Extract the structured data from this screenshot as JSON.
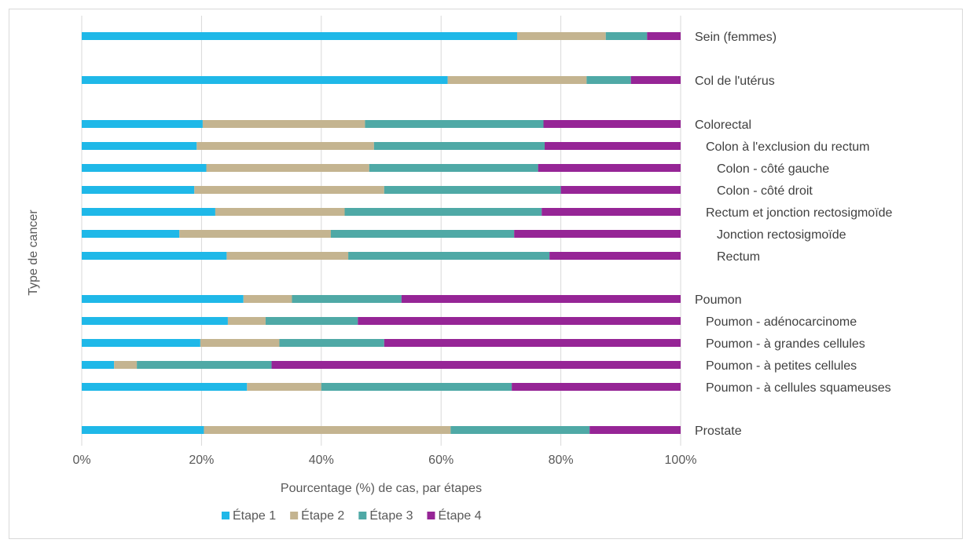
{
  "chart_data": {
    "type": "bar",
    "orientation": "horizontal",
    "stacked": true,
    "percent": true,
    "xlabel": "Pourcentage (%) de cas, par étapes",
    "ylabel": "Type de cancer",
    "xlim": [
      0,
      100
    ],
    "xticks": [
      "0%",
      "20%",
      "40%",
      "60%",
      "80%",
      "100%"
    ],
    "grid": "vertical",
    "legend_position": "bottom",
    "categories": [
      {
        "label": "Sein (femmes)",
        "indent": 0
      },
      {
        "label": "Col de l'utérus",
        "indent": 0
      },
      {
        "label": "Colorectal",
        "indent": 0
      },
      {
        "label": "Colon à l'exclusion du rectum",
        "indent": 1
      },
      {
        "label": "Colon - côté gauche",
        "indent": 2
      },
      {
        "label": "Colon - côté droit",
        "indent": 2
      },
      {
        "label": "Rectum et jonction rectosigmoïde",
        "indent": 1
      },
      {
        "label": "Jonction rectosigmoïde",
        "indent": 2
      },
      {
        "label": "Rectum",
        "indent": 2
      },
      {
        "label": "Poumon",
        "indent": 0
      },
      {
        "label": "Poumon - adénocarcinome",
        "indent": 1
      },
      {
        "label": "Poumon - à grandes cellules",
        "indent": 1
      },
      {
        "label": "Poumon - à petites cellules",
        "indent": 1
      },
      {
        "label": "Poumon - à cellules squameuses",
        "indent": 1
      },
      {
        "label": "Prostate",
        "indent": 0
      }
    ],
    "series": [
      {
        "name": "Étape 1",
        "color": "#1fb8e8",
        "values": [
          72.7,
          61.1,
          20.2,
          19.2,
          20.8,
          18.8,
          22.3,
          16.3,
          24.2,
          27.0,
          24.4,
          19.8,
          5.4,
          27.6,
          20.4
        ]
      },
      {
        "name": "Étape 2",
        "color": "#c4b490",
        "values": [
          14.8,
          23.2,
          27.1,
          29.6,
          27.2,
          31.7,
          21.6,
          25.3,
          20.3,
          8.1,
          6.3,
          13.2,
          3.8,
          12.4,
          41.2
        ]
      },
      {
        "name": "Étape 3",
        "color": "#4fa9a6",
        "values": [
          6.9,
          7.4,
          29.8,
          28.5,
          28.2,
          29.5,
          32.9,
          30.6,
          33.6,
          18.3,
          15.4,
          17.5,
          22.5,
          31.8,
          23.2
        ]
      },
      {
        "name": "Étape 4",
        "color": "#962596",
        "values": [
          5.6,
          8.3,
          22.9,
          22.7,
          23.8,
          20.0,
          23.2,
          27.8,
          21.9,
          46.6,
          53.9,
          49.5,
          68.3,
          28.2,
          15.2
        ]
      }
    ]
  }
}
